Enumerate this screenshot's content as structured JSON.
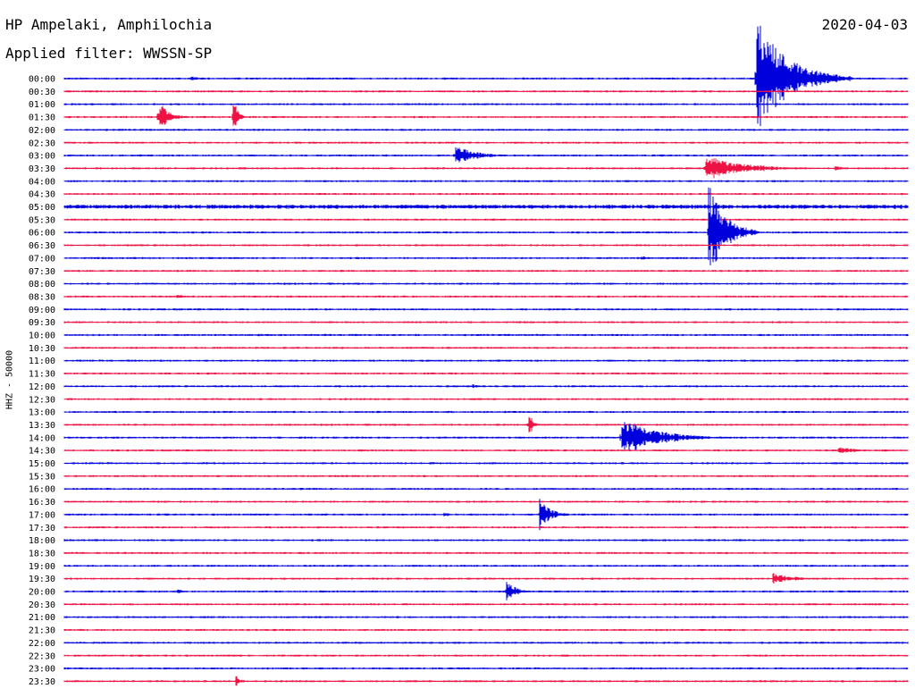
{
  "header": {
    "station": "HP Ampelaki, Amphilochia",
    "filter": "Applied filter: WWSSN-SP",
    "date": "2020-04-03"
  },
  "channel_label": "HHZ - 50000",
  "colors": {
    "even_trace": "#0000dd",
    "odd_trace": "#ee1144",
    "background": "#ffffff",
    "text": "#000000"
  },
  "chart_data": {
    "type": "line",
    "subtype": "helicorder",
    "title": "HP Ampelaki, Amphilochia",
    "subtitle": "Applied filter: WWSSN-SP",
    "date": "2020-04-03",
    "ylabel": "HHZ - 50000",
    "xlabel": "",
    "grid": false,
    "line_duration_min": 30,
    "row_labels": [
      "00:00",
      "00:30",
      "01:00",
      "01:30",
      "02:00",
      "02:30",
      "03:00",
      "03:30",
      "04:00",
      "04:30",
      "05:00",
      "05:30",
      "06:00",
      "06:30",
      "07:00",
      "07:30",
      "08:00",
      "08:30",
      "09:00",
      "09:30",
      "10:00",
      "10:30",
      "11:00",
      "11:30",
      "12:00",
      "12:30",
      "13:00",
      "13:30",
      "14:00",
      "14:30",
      "15:00",
      "15:30",
      "16:00",
      "16:30",
      "17:00",
      "17:30",
      "18:00",
      "18:30",
      "19:00",
      "19:30",
      "20:00",
      "20:30",
      "21:00",
      "21:30",
      "22:00",
      "22:30",
      "23:00",
      "23:30"
    ],
    "series_colors": [
      "#0000dd",
      "#ee1144"
    ],
    "noise_level": [
      1,
      1,
      1,
      1,
      1,
      1,
      1,
      1,
      1,
      1,
      2,
      1,
      1,
      1,
      1,
      1,
      1,
      1,
      1,
      1,
      1,
      1,
      1,
      1,
      1,
      1,
      1,
      1,
      1,
      1,
      1,
      1,
      1,
      1,
      1,
      1,
      1,
      1,
      1,
      1,
      1,
      1,
      1,
      1,
      1,
      1,
      1,
      1
    ],
    "events": [
      {
        "row": 0,
        "minute": 24.6,
        "amplitude": 70,
        "duration_min": 3.4
      },
      {
        "row": 0,
        "minute": 4.5,
        "amplitude": 3,
        "duration_min": 1.5
      },
      {
        "row": 3,
        "minute": 3.3,
        "amplitude": 8,
        "duration_min": 1.2
      },
      {
        "row": 3,
        "minute": 3.4,
        "amplitude": 20,
        "duration_min": 1.0
      },
      {
        "row": 3,
        "minute": 6.0,
        "amplitude": 35,
        "duration_min": 0.4
      },
      {
        "row": 6,
        "minute": 13.9,
        "amplitude": 12,
        "duration_min": 2.2
      },
      {
        "row": 7,
        "minute": 22.8,
        "amplitude": 16,
        "duration_min": 4.0
      },
      {
        "row": 7,
        "minute": 27.4,
        "amplitude": 4,
        "duration_min": 0.8
      },
      {
        "row": 12,
        "minute": 22.9,
        "amplitude": 60,
        "duration_min": 1.8
      },
      {
        "row": 14,
        "minute": 20.5,
        "amplitude": 3,
        "duration_min": 1.2
      },
      {
        "row": 17,
        "minute": 4.0,
        "amplitude": 3,
        "duration_min": 1.0
      },
      {
        "row": 24,
        "minute": 14.5,
        "amplitude": 3,
        "duration_min": 0.8
      },
      {
        "row": 27,
        "minute": 16.5,
        "amplitude": 20,
        "duration_min": 0.4
      },
      {
        "row": 28,
        "minute": 19.8,
        "amplitude": 22,
        "duration_min": 4.0
      },
      {
        "row": 29,
        "minute": 27.5,
        "amplitude": 5,
        "duration_min": 2.0
      },
      {
        "row": 34,
        "minute": 16.9,
        "amplitude": 18,
        "duration_min": 1.2
      },
      {
        "row": 34,
        "minute": 13.5,
        "amplitude": 3,
        "duration_min": 0.8
      },
      {
        "row": 39,
        "minute": 25.2,
        "amplitude": 7,
        "duration_min": 2.2
      },
      {
        "row": 40,
        "minute": 15.7,
        "amplitude": 12,
        "duration_min": 1.2
      },
      {
        "row": 40,
        "minute": 4.0,
        "amplitude": 3,
        "duration_min": 0.8
      },
      {
        "row": 47,
        "minute": 6.1,
        "amplitude": 7,
        "duration_min": 0.6
      }
    ]
  }
}
